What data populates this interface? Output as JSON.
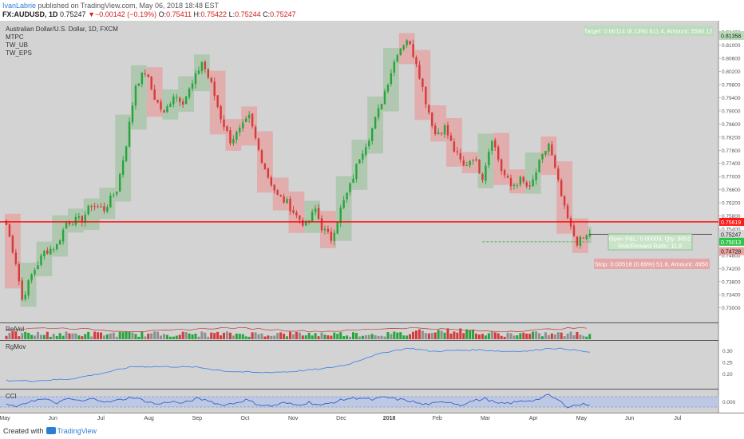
{
  "header": {
    "author": "IvanLabrie",
    "published": "published on TradingView.com, May 06, 2018 18:48 EST",
    "symbol": "FX:AUDUSD, 1D",
    "last": "0.75247",
    "change": "−0.00142 (−0.19%)",
    "o_label": "O:",
    "o_value": "0.75411",
    "h_label": "H:",
    "h_value": "0.75422",
    "l_label": "L:",
    "l_value": "0.75244",
    "c_label": "C:",
    "c_value": "0.75247"
  },
  "footer": {
    "created_with": "Created with",
    "brand": "TradingView"
  },
  "colors": {
    "pane_bg": "#d3d3d3",
    "up": "#26a63a",
    "down": "#d63a3a",
    "up_box": "#a9c4a9",
    "down_box": "#e3a6a6",
    "stop_line": "#ff0000",
    "position_line": "#1a1a1a",
    "entry_line": "#4caf50",
    "indicator_line": "#4a86e8",
    "cci_band": "#b8c6e8"
  },
  "chart_data": [
    {
      "type": "candlestick",
      "panel": "price",
      "legend": [
        "Australian Dollar/U.S. Dollar, 1D, FXCM",
        "MTPC",
        "TW_UB",
        "TW_EPS"
      ],
      "x_tick_labels": [
        "May",
        "Jun",
        "Jul",
        "Aug",
        "Sep",
        "Oct",
        "Nov",
        "Dec",
        "2018",
        "Feb",
        "Mar",
        "Apr",
        "May",
        "Jun",
        "Jul"
      ],
      "y_tick_labels": [
        "0.73000",
        "0.73400",
        "0.73800",
        "0.74200",
        "0.74600",
        "0.75000",
        "0.75400",
        "0.75800",
        "0.76200",
        "0.76600",
        "0.77000",
        "0.77400",
        "0.77800",
        "0.78200",
        "0.78600",
        "0.79000",
        "0.79400",
        "0.79800",
        "0.80200",
        "0.80600",
        "0.81000",
        "0.81400"
      ],
      "ylim": [
        0.727,
        0.816
      ],
      "path": [
        {
          "t": 0,
          "p": 0.7553
        },
        {
          "t": 3,
          "p": 0.744
        },
        {
          "t": 5,
          "p": 0.7325
        },
        {
          "t": 8,
          "p": 0.74
        },
        {
          "t": 12,
          "p": 0.747
        },
        {
          "t": 16,
          "p": 0.749
        },
        {
          "t": 19,
          "p": 0.756
        },
        {
          "t": 24,
          "p": 0.757
        },
        {
          "t": 27,
          "p": 0.7615
        },
        {
          "t": 31,
          "p": 0.76
        },
        {
          "t": 35,
          "p": 0.766
        },
        {
          "t": 38,
          "p": 0.78
        },
        {
          "t": 41,
          "p": 0.798
        },
        {
          "t": 44,
          "p": 0.802
        },
        {
          "t": 47,
          "p": 0.794
        },
        {
          "t": 50,
          "p": 0.789
        },
        {
          "t": 53,
          "p": 0.795
        },
        {
          "t": 56,
          "p": 0.793
        },
        {
          "t": 59,
          "p": 0.798
        },
        {
          "t": 62,
          "p": 0.805
        },
        {
          "t": 65,
          "p": 0.798
        },
        {
          "t": 68,
          "p": 0.788
        },
        {
          "t": 71,
          "p": 0.781
        },
        {
          "t": 74,
          "p": 0.784
        },
        {
          "t": 77,
          "p": 0.788
        },
        {
          "t": 80,
          "p": 0.778
        },
        {
          "t": 83,
          "p": 0.77
        },
        {
          "t": 86,
          "p": 0.764
        },
        {
          "t": 89,
          "p": 0.762
        },
        {
          "t": 92,
          "p": 0.758
        },
        {
          "t": 95,
          "p": 0.755
        },
        {
          "t": 98,
          "p": 0.76
        },
        {
          "t": 100,
          "p": 0.7545
        },
        {
          "t": 103,
          "p": 0.751
        },
        {
          "t": 106,
          "p": 0.76
        },
        {
          "t": 109,
          "p": 0.767
        },
        {
          "t": 112,
          "p": 0.776
        },
        {
          "t": 115,
          "p": 0.782
        },
        {
          "t": 118,
          "p": 0.79
        },
        {
          "t": 121,
          "p": 0.799
        },
        {
          "t": 124,
          "p": 0.808
        },
        {
          "t": 127,
          "p": 0.812
        },
        {
          "t": 130,
          "p": 0.805
        },
        {
          "t": 133,
          "p": 0.793
        },
        {
          "t": 136,
          "p": 0.783
        },
        {
          "t": 139,
          "p": 0.785
        },
        {
          "t": 142,
          "p": 0.778
        },
        {
          "t": 145,
          "p": 0.773
        },
        {
          "t": 148,
          "p": 0.776
        },
        {
          "t": 151,
          "p": 0.77
        },
        {
          "t": 154,
          "p": 0.782
        },
        {
          "t": 157,
          "p": 0.772
        },
        {
          "t": 160,
          "p": 0.767
        },
        {
          "t": 163,
          "p": 0.769
        },
        {
          "t": 166,
          "p": 0.766
        },
        {
          "t": 169,
          "p": 0.774
        },
        {
          "t": 172,
          "p": 0.78
        },
        {
          "t": 175,
          "p": 0.768
        },
        {
          "t": 177,
          "p": 0.76
        },
        {
          "t": 179,
          "p": 0.754
        },
        {
          "t": 181,
          "p": 0.75
        },
        {
          "t": 183,
          "p": 0.751
        },
        {
          "t": 185,
          "p": 0.7525
        }
      ],
      "markers": {
        "stop": "0.75619",
        "current_black": "0.75244",
        "current": "0.75247",
        "entry": "0.75013",
        "stop_loss": "0.74728"
      },
      "position": {
        "target_text": "Target: 0.06114 (8.13%) 611.4, Amount: 5590.12",
        "target_price": "0.81358",
        "open_pnl_text": "Open P&L: 0.00003, Qty: 9052",
        "rr_text": "Risk/Reward Ratio: 11.8",
        "stop_text": "Stop: 0.00518 (0.69%) 51.8, Amount: 4950"
      }
    },
    {
      "type": "bar",
      "panel": "volume",
      "label": "RelVol"
    },
    {
      "type": "line",
      "panel": "rgmov",
      "label": "RgMov",
      "y_tick_labels": [
        "0.20",
        "0.25",
        "0.30"
      ],
      "ylim": [
        0.15,
        0.33
      ],
      "path": [
        {
          "t": 0,
          "v": 0.172
        },
        {
          "t": 8,
          "v": 0.17
        },
        {
          "t": 20,
          "v": 0.178
        },
        {
          "t": 30,
          "v": 0.202
        },
        {
          "t": 40,
          "v": 0.232
        },
        {
          "t": 50,
          "v": 0.232
        },
        {
          "t": 60,
          "v": 0.23
        },
        {
          "t": 70,
          "v": 0.212
        },
        {
          "t": 80,
          "v": 0.206
        },
        {
          "t": 90,
          "v": 0.21
        },
        {
          "t": 100,
          "v": 0.222
        },
        {
          "t": 108,
          "v": 0.24
        },
        {
          "t": 115,
          "v": 0.275
        },
        {
          "t": 122,
          "v": 0.3
        },
        {
          "t": 128,
          "v": 0.312
        },
        {
          "t": 135,
          "v": 0.298
        },
        {
          "t": 142,
          "v": 0.302
        },
        {
          "t": 150,
          "v": 0.305
        },
        {
          "t": 158,
          "v": 0.298
        },
        {
          "t": 166,
          "v": 0.3
        },
        {
          "t": 172,
          "v": 0.312
        },
        {
          "t": 178,
          "v": 0.308
        },
        {
          "t": 185,
          "v": 0.294
        }
      ]
    },
    {
      "type": "line",
      "panel": "cci",
      "label": "CCI",
      "y_tick_labels": [
        "0.000"
      ],
      "path": [
        {
          "t": 0,
          "v": -0.6
        },
        {
          "t": 4,
          "v": -0.9
        },
        {
          "t": 8,
          "v": 0.3
        },
        {
          "t": 12,
          "v": 0.5
        },
        {
          "t": 16,
          "v": -0.2
        },
        {
          "t": 20,
          "v": 0.6
        },
        {
          "t": 24,
          "v": 0.1
        },
        {
          "t": 28,
          "v": 0.7
        },
        {
          "t": 32,
          "v": -0.1
        },
        {
          "t": 36,
          "v": 0.4
        },
        {
          "t": 40,
          "v": 0.9
        },
        {
          "t": 44,
          "v": 0.2
        },
        {
          "t": 48,
          "v": -0.5
        },
        {
          "t": 52,
          "v": 0.1
        },
        {
          "t": 56,
          "v": -0.3
        },
        {
          "t": 60,
          "v": 0.6
        },
        {
          "t": 64,
          "v": 0.3
        },
        {
          "t": 68,
          "v": -0.6
        },
        {
          "t": 72,
          "v": -0.3
        },
        {
          "t": 76,
          "v": 0.4
        },
        {
          "t": 80,
          "v": -0.5
        },
        {
          "t": 84,
          "v": -0.8
        },
        {
          "t": 88,
          "v": -0.2
        },
        {
          "t": 92,
          "v": -0.6
        },
        {
          "t": 96,
          "v": -0.1
        },
        {
          "t": 100,
          "v": -0.7
        },
        {
          "t": 104,
          "v": 0.0
        },
        {
          "t": 108,
          "v": 0.6
        },
        {
          "t": 112,
          "v": 0.8
        },
        {
          "t": 116,
          "v": 0.4
        },
        {
          "t": 120,
          "v": 0.9
        },
        {
          "t": 124,
          "v": 0.5
        },
        {
          "t": 128,
          "v": 0.2
        },
        {
          "t": 132,
          "v": -0.5
        },
        {
          "t": 136,
          "v": -0.3
        },
        {
          "t": 140,
          "v": 0.1
        },
        {
          "t": 144,
          "v": -0.6
        },
        {
          "t": 148,
          "v": 0.2
        },
        {
          "t": 152,
          "v": 0.6
        },
        {
          "t": 156,
          "v": -0.4
        },
        {
          "t": 160,
          "v": -0.2
        },
        {
          "t": 164,
          "v": 0.2
        },
        {
          "t": 168,
          "v": 0.4
        },
        {
          "t": 172,
          "v": 1.3
        },
        {
          "t": 175,
          "v": 0.3
        },
        {
          "t": 178,
          "v": -0.9
        },
        {
          "t": 181,
          "v": -0.6
        },
        {
          "t": 185,
          "v": -0.4
        }
      ]
    }
  ]
}
